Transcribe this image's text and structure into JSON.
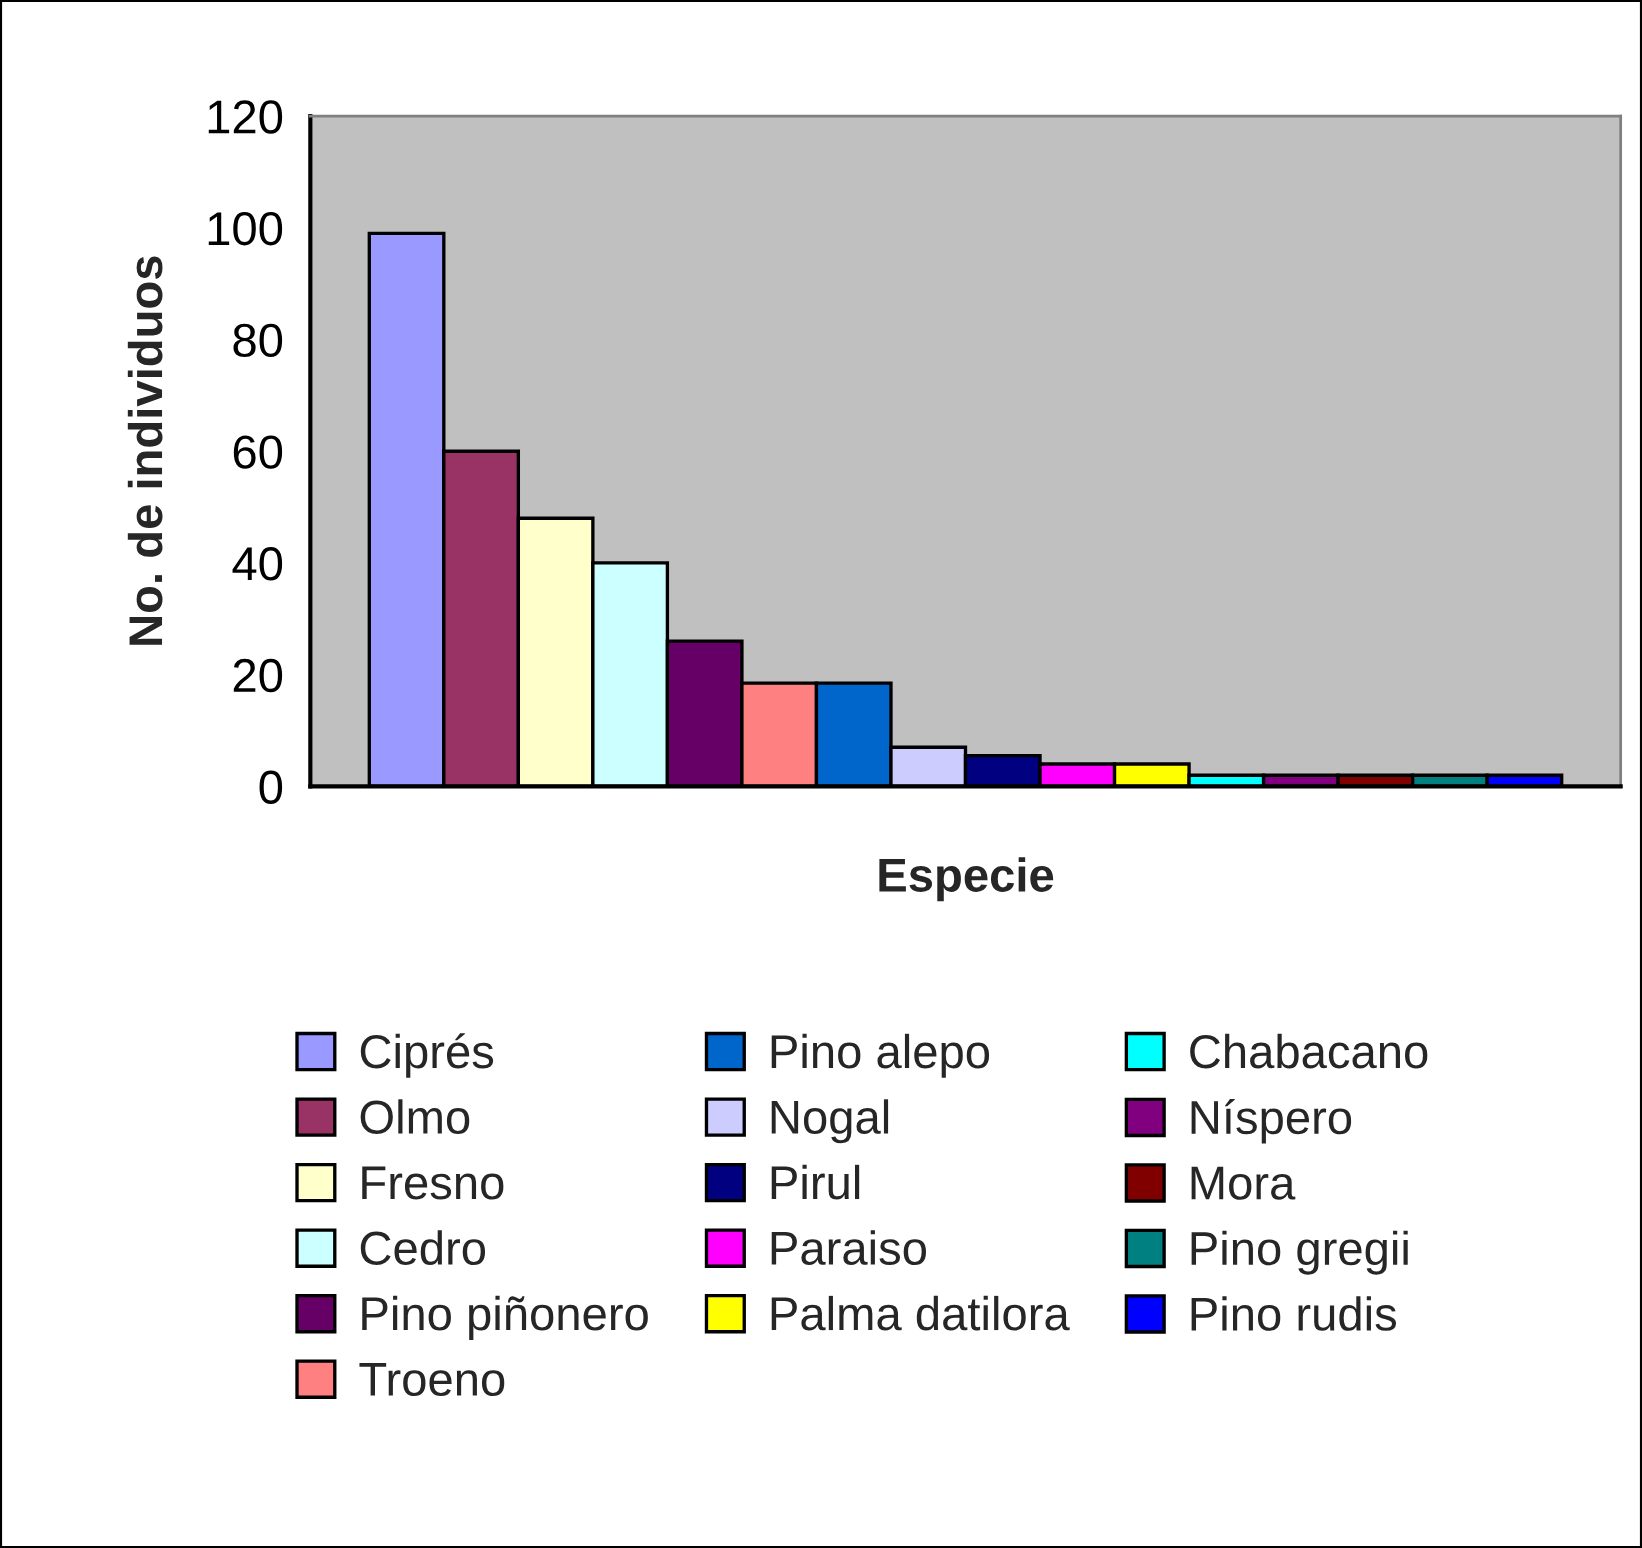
{
  "chart_data": {
    "type": "bar",
    "xlabel": "Especie",
    "ylabel": "No. de individuos",
    "categories": [
      null
    ],
    "ylim": [
      0,
      120
    ],
    "yticks": [
      0,
      20,
      40,
      60,
      80,
      100,
      120
    ],
    "grid": false,
    "legend": "bottom",
    "series": [
      {
        "name": "Ciprés",
        "color": "#9999ff",
        "values": [
          99
        ]
      },
      {
        "name": "Olmo",
        "color": "#993366",
        "values": [
          60
        ]
      },
      {
        "name": "Fresno",
        "color": "#ffffcc",
        "values": [
          48
        ]
      },
      {
        "name": "Cedro",
        "color": "#ccffff",
        "values": [
          40
        ]
      },
      {
        "name": "Pino piñonero",
        "color": "#660066",
        "values": [
          26
        ]
      },
      {
        "name": "Troeno",
        "color": "#ff8080",
        "values": [
          18.5
        ]
      },
      {
        "name": "Pino alepo",
        "color": "#0066cc",
        "values": [
          18.5
        ]
      },
      {
        "name": "Nogal",
        "color": "#ccccff",
        "values": [
          7
        ]
      },
      {
        "name": "Pirul",
        "color": "#000080",
        "values": [
          5.5
        ]
      },
      {
        "name": "Paraiso",
        "color": "#ff00ff",
        "values": [
          4
        ]
      },
      {
        "name": "Palma datilora",
        "color": "#ffff00",
        "values": [
          4
        ]
      },
      {
        "name": "Chabacano",
        "color": "#00ffff",
        "values": [
          2
        ]
      },
      {
        "name": "Níspero",
        "color": "#800080",
        "values": [
          2
        ]
      },
      {
        "name": "Mora",
        "color": "#800000",
        "values": [
          2
        ]
      },
      {
        "name": "Pino gregii",
        "color": "#008080",
        "values": [
          2
        ]
      },
      {
        "name": "Pino rudis",
        "color": "#0000ff",
        "values": [
          2
        ]
      }
    ]
  }
}
